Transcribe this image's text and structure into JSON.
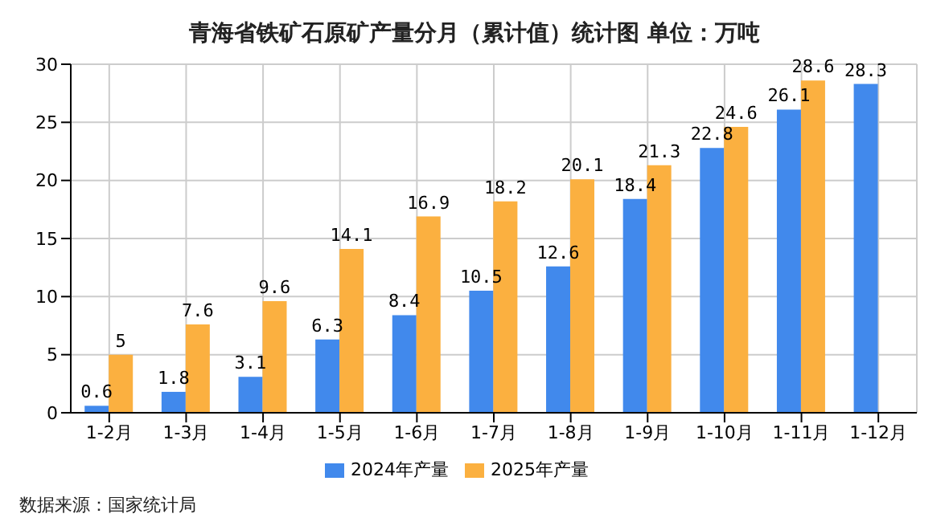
{
  "chart_data": {
    "type": "bar",
    "title": "青海省铁矿石原矿产量分月（累计值）统计图 单位：万吨",
    "categories": [
      "1-2月",
      "1-3月",
      "1-4月",
      "1-5月",
      "1-6月",
      "1-7月",
      "1-8月",
      "1-9月",
      "1-10月",
      "1-11月",
      "1-12月"
    ],
    "series": [
      {
        "name": "2024年产量",
        "color": "#4189ec",
        "values": [
          0.6,
          1.8,
          3.1,
          6.3,
          8.4,
          10.5,
          12.6,
          18.4,
          22.8,
          26.1,
          28.3
        ]
      },
      {
        "name": "2025年产量",
        "color": "#fbb040",
        "values": [
          5,
          7.6,
          9.6,
          14.1,
          16.9,
          18.2,
          20.1,
          21.3,
          24.6,
          28.6,
          null
        ]
      }
    ],
    "ylim": [
      0,
      30
    ],
    "yticks": [
      0,
      5,
      10,
      15,
      20,
      25,
      30
    ],
    "grid": true,
    "legend": "bottom",
    "data_labels": true,
    "annotations": [
      "数据来源：国家统计局"
    ]
  }
}
